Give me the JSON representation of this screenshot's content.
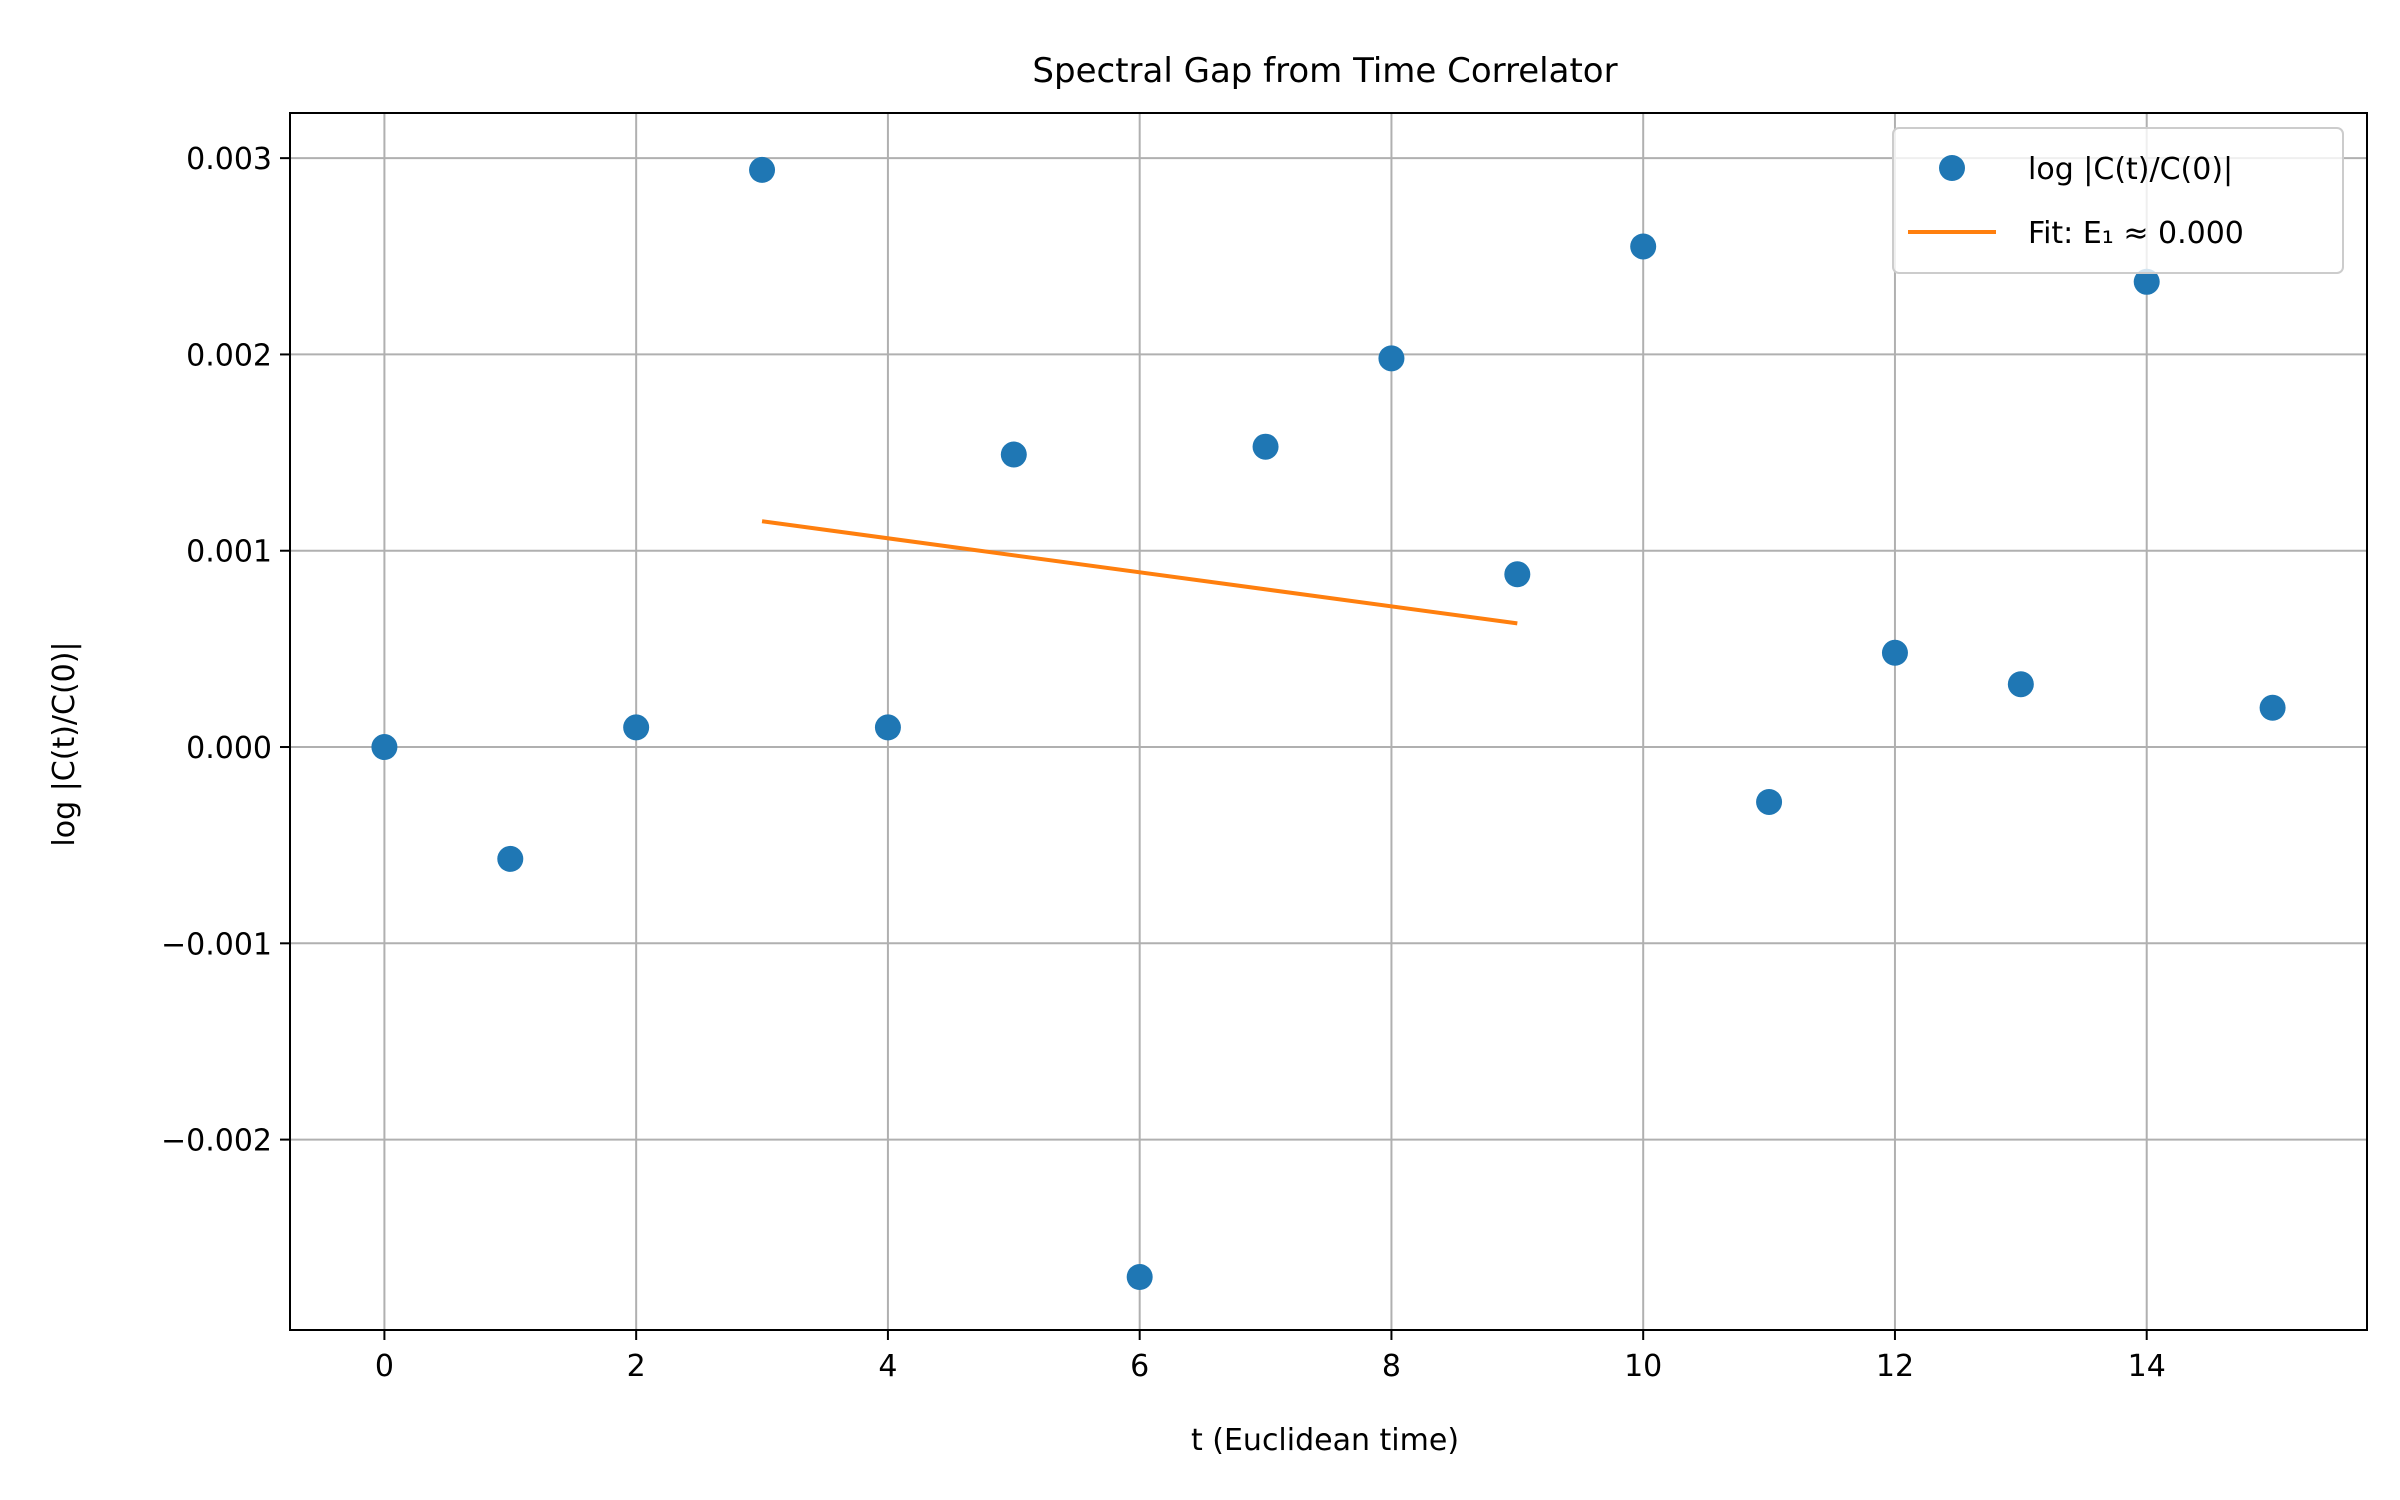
{
  "chart_data": {
    "type": "scatter",
    "title": "Spectral Gap from Time Correlator",
    "xlabel": "t (Euclidean time)",
    "ylabel": "log |C(t)/C(0)|",
    "xlim": [
      -0.75,
      15.75
    ],
    "ylim": [
      -0.00297,
      0.00323
    ],
    "xticks": [
      0,
      2,
      4,
      6,
      8,
      10,
      12,
      14
    ],
    "xtick_labels": [
      "0",
      "2",
      "4",
      "6",
      "8",
      "10",
      "12",
      "14"
    ],
    "yticks": [
      0.003,
      0.002,
      0.001,
      0.0,
      -0.001,
      -0.002
    ],
    "ytick_labels": [
      "0.003",
      "0.002",
      "0.001",
      "0.000",
      "−0.001",
      "−0.002"
    ],
    "grid": true,
    "legend_position": "upper right",
    "series": [
      {
        "name": "log |C(t)/C(0)|",
        "kind": "scatter",
        "color": "#1f77b4",
        "x": [
          0,
          1,
          2,
          3,
          4,
          5,
          6,
          7,
          8,
          9,
          10,
          11,
          12,
          13,
          14,
          15
        ],
        "y": [
          0.0,
          -0.00057,
          0.0001,
          0.00294,
          0.0001,
          0.00149,
          -0.0027,
          0.00153,
          0.00198,
          0.00088,
          0.00255,
          -0.00028,
          0.00048,
          0.00032,
          0.00237,
          0.0002
        ]
      },
      {
        "name": "Fit: E₁ ≈ 0.000",
        "kind": "line",
        "color": "#ff7f0e",
        "x": [
          3,
          9
        ],
        "y": [
          0.00115,
          0.00063
        ]
      }
    ]
  }
}
